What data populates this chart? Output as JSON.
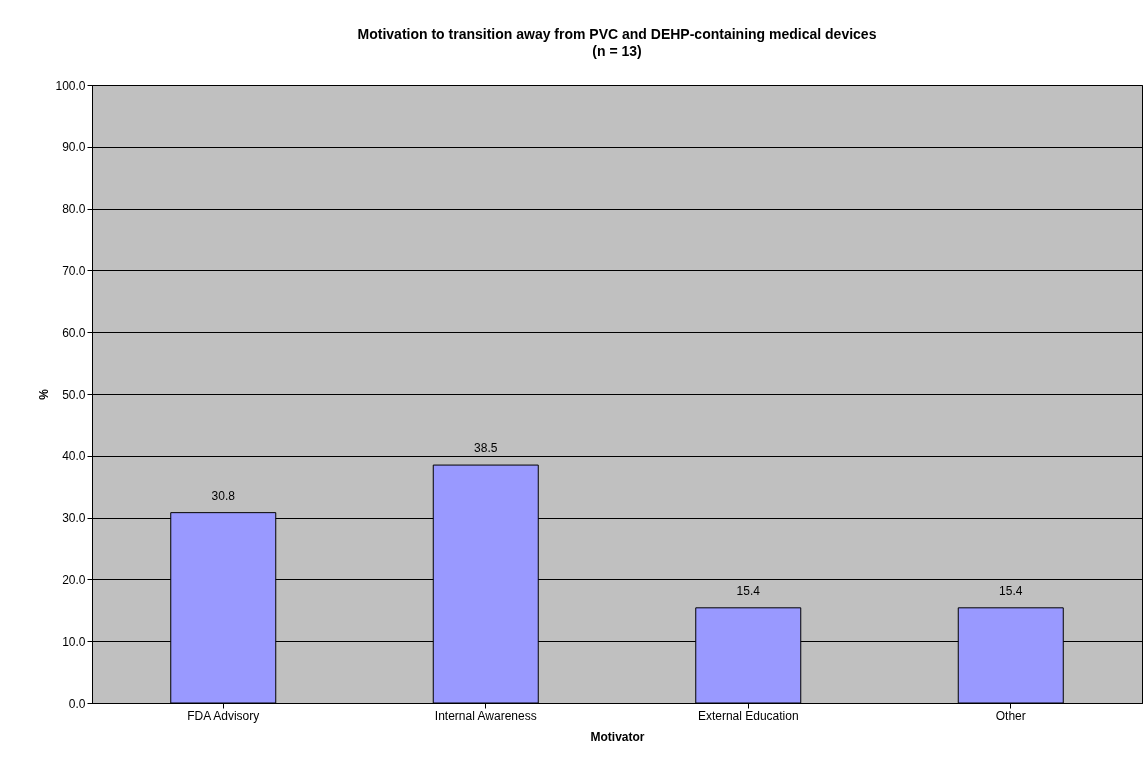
{
  "chart_data": {
    "type": "bar",
    "title": "Motivation to transition away from PVC and DEHP-containing medical devices",
    "subtitle": "(n = 13)",
    "xlabel": "Motivator",
    "ylabel": "%",
    "categories": [
      "FDA Advisory",
      "Internal Awareness",
      "External Education",
      "Other"
    ],
    "values": [
      30.8,
      38.5,
      15.4,
      15.4
    ],
    "color": "#9999ff",
    "ylim": [
      0,
      100
    ],
    "yticks": [
      {
        "value": 0,
        "label": "0.0"
      },
      {
        "value": 10,
        "label": "10.0"
      },
      {
        "value": 20,
        "label": "20.0"
      },
      {
        "value": 30,
        "label": "30.0"
      },
      {
        "value": 40,
        "label": "40.0"
      },
      {
        "value": 50,
        "label": "50.0"
      },
      {
        "value": 60,
        "label": "60.0"
      },
      {
        "value": 70,
        "label": "70.0"
      },
      {
        "value": 80,
        "label": "80.0"
      },
      {
        "value": 90,
        "label": "90.0"
      },
      {
        "value": 100,
        "label": "100.0"
      }
    ],
    "grid": "y",
    "data_labels": true
  }
}
